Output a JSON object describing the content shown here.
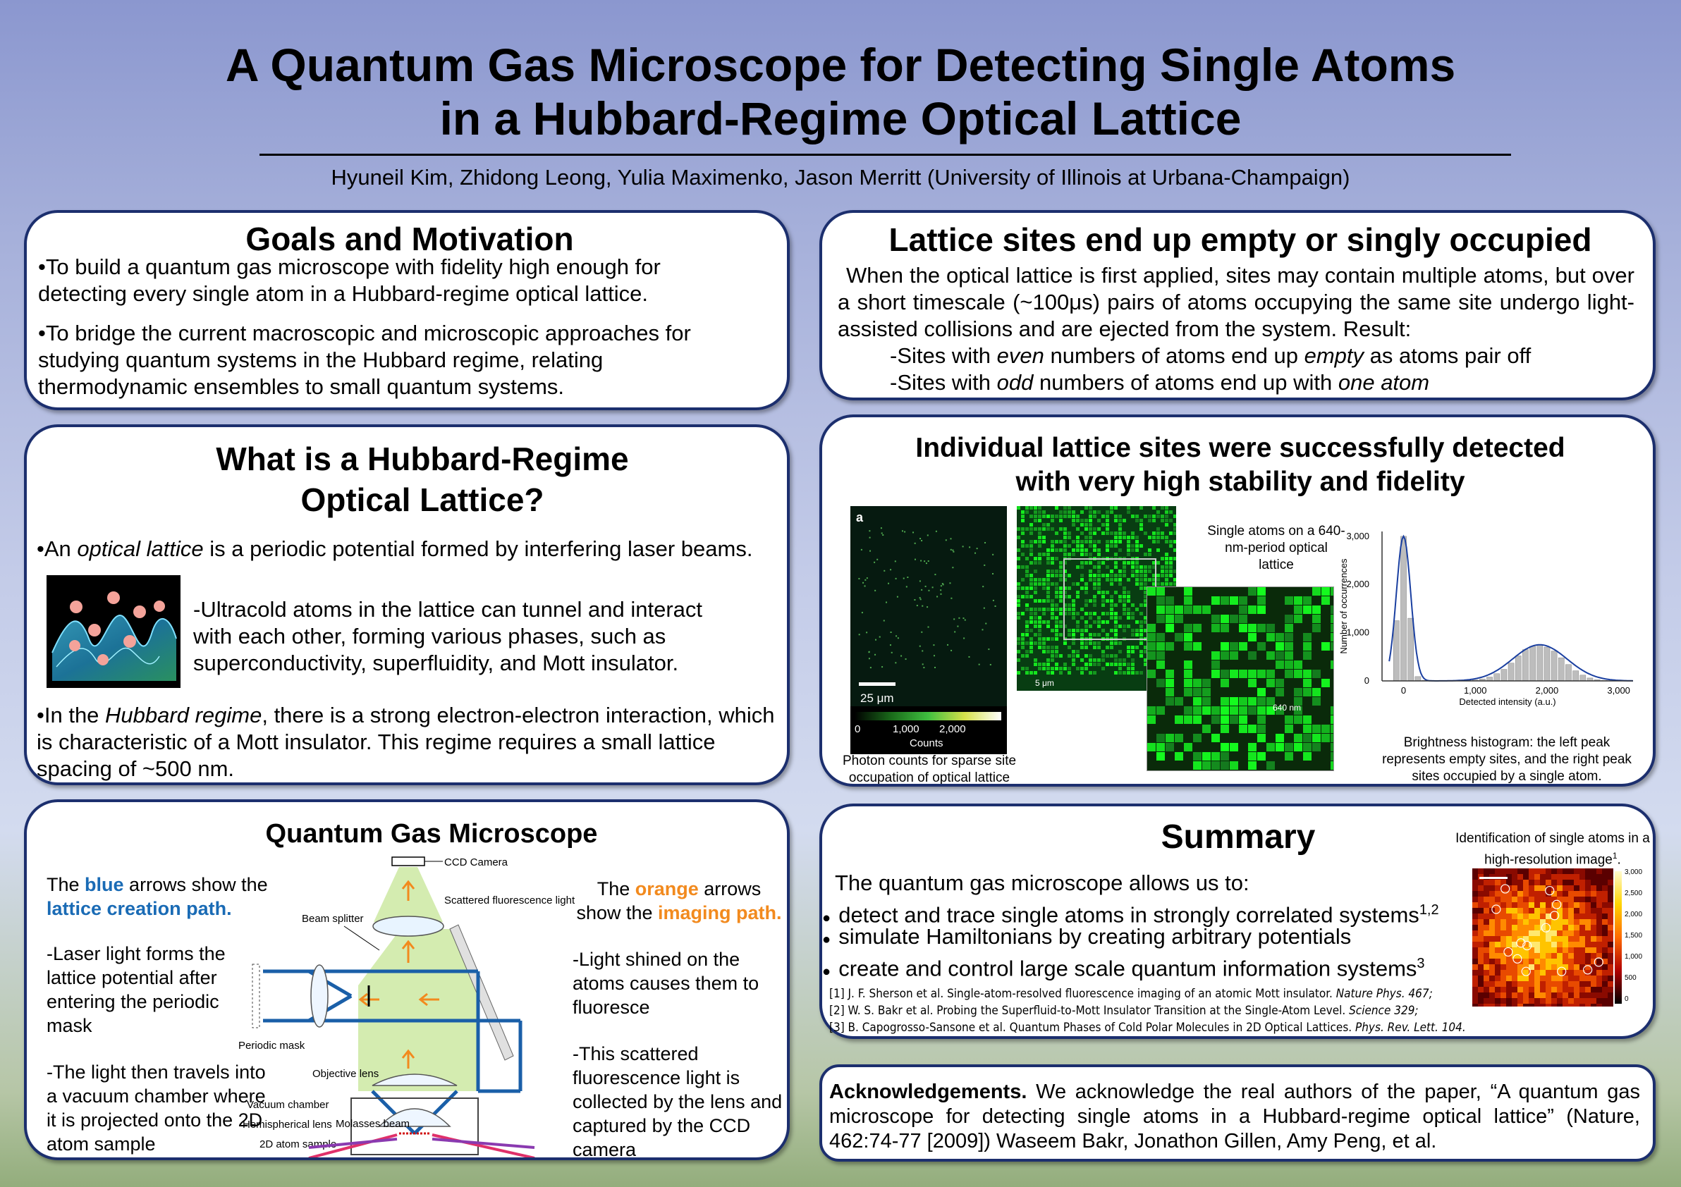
{
  "poster": {
    "title_line1": "A Quantum Gas Microscope for Detecting Single Atoms",
    "title_line2": "in a Hubbard-Regime Optical Lattice",
    "authors": "Hyuneil Kim, Zhidong Leong, Yulia Maximenko, Jason Merritt (University of Illinois at Urbana-Champaign)"
  },
  "goals": {
    "heading": "Goals and Motivation",
    "bullet1": "•To build a quantum gas microscope with fidelity high enough for detecting every single atom in a Hubbard-regime optical lattice.",
    "bullet2": "•To bridge the current macroscopic and microscopic approaches for studying quantum systems in the Hubbard regime, relating thermodynamic ensembles to small quantum systems."
  },
  "hubbard": {
    "heading_line1": "What is a Hubbard-Regime",
    "heading_line2": "Optical Lattice?",
    "p1_prefix": "An ",
    "p1_em": "optical lattice",
    "p1_suffix": " is a periodic potential formed by interfering laser beams.",
    "p2": "-Ultracold atoms in the lattice can tunnel and interact with each other, forming various phases, such as superconductivity, superfluidity, and Mott insulator.",
    "p3_prefix": "In the ",
    "p3_em": "Hubbard regime",
    "p3_suffix": ", there is a strong electron-electron interaction, which is characteristic of a Mott insulator.  This regime requires a small lattice spacing of ~500 nm."
  },
  "microscope": {
    "heading": "Quantum Gas Microscope",
    "blue_pre": "The ",
    "blue_word": "blue",
    "blue_post": " arrows show the",
    "blue_path": "lattice creation path.",
    "left1": "-Laser light forms the lattice potential after entering the periodic mask",
    "left2": "-The light then travels into a vacuum chamber where it is projected onto the 2D atom sample",
    "orange_pre": "The ",
    "orange_word": "orange",
    "orange_post": " arrows",
    "orange_pre2": "show the ",
    "orange_path": "imaging path.",
    "right1": "-Light shined on the atoms causes them to fluoresce",
    "right2": "-This scattered fluorescence light is collected by the lens and captured by the CCD camera",
    "labels": {
      "ccd": "CCD Camera",
      "scattered": "Scattered fluorescence light",
      "beam_splitter": "Beam splitter",
      "periodic_mask": "Periodic mask",
      "objective": "Objective lens",
      "vacuum": "Vacuum chamber",
      "hemi": "Hemispherical lens",
      "sample": "2D atom sample",
      "molasses": "Molasses beam"
    }
  },
  "lattice": {
    "heading": "Lattice sites end up empty or singly occupied",
    "p": "When the optical lattice is first applied, sites may contain multiple atoms, but over a short timescale (~100μs) pairs of atoms occupying the same site undergo  light-assisted collisions and are ejected from the system.  Result:",
    "r1_a": "-Sites with ",
    "r1_b": "even",
    "r1_c": " numbers of atoms end up ",
    "r1_d": "empty",
    "r1_e": " as atoms pair off",
    "r2_a": "-Sites with ",
    "r2_b": "odd",
    "r2_c": " numbers of atoms end up with ",
    "r2_d": "one atom"
  },
  "detection": {
    "heading_line1": "Individual lattice sites were successfully detected",
    "heading_line2": "with very high stability and fidelity",
    "panel_letter": "a",
    "scalebar1": "25 μm",
    "colorbar_ticks": [
      "0",
      "1,000",
      "2,000"
    ],
    "colorbar_label": "Counts",
    "caption1": "Photon counts for sparse site occupation of optical lattice",
    "scalebar2": "5 μm",
    "single_atoms_label": "Single atoms on a 640-nm-period optical lattice",
    "spacing_label": "640 nm",
    "caption2": "Brightness histogram: the left peak represents empty sites, and the right peak sites occupied by a single atom."
  },
  "chart_data": {
    "type": "bar",
    "x": [
      -100,
      0,
      100,
      200,
      300,
      400,
      500,
      600,
      700,
      800,
      900,
      1000,
      1100,
      1200,
      1300,
      1400,
      1500,
      1600,
      1700,
      1800,
      1900,
      2000,
      2100,
      2200,
      2300,
      2400,
      2500,
      2600,
      2700,
      2800,
      2900,
      3000
    ],
    "values": [
      1250,
      3000,
      1300,
      90,
      10,
      5,
      5,
      5,
      5,
      5,
      10,
      20,
      40,
      80,
      150,
      240,
      370,
      520,
      650,
      720,
      750,
      700,
      620,
      480,
      340,
      210,
      120,
      60,
      25,
      10,
      5,
      2
    ],
    "xlabel": "Detected intensity (a.u.)",
    "ylabel": "Number of occurrences",
    "x_ticks": [
      "0",
      "1,000",
      "2,000",
      "3,000"
    ],
    "y_ticks": [
      "0",
      "1,000",
      "2,000",
      "3,000"
    ],
    "xlim": [
      -300,
      3200
    ],
    "ylim": [
      0,
      3100
    ]
  },
  "summary": {
    "heading": "Summary",
    "inset_label": "Identification of single atoms in a high-resolution image",
    "inset_sup": "1",
    "intro": "The quantum gas microscope allows us to:",
    "items": [
      {
        "text": "detect and trace single atoms in strongly correlated systems",
        "sup": "1,2"
      },
      {
        "text": "simulate Hamiltonians by creating arbitrary potentials",
        "sup": ""
      },
      {
        "text": "create and control large scale quantum information systems",
        "sup": "3"
      }
    ],
    "refs": [
      {
        "a": "[1] J. F. Sherson et al. Single-atom-resolved fluorescence imaging of an atomic Mott insulator. ",
        "b": "Nature Phys. 467;"
      },
      {
        "a": "[2] W. S. Bakr et al. Probing the Superfluid-to-Mott Insulator Transition at the Single-Atom Level. ",
        "b": "Science 329;"
      },
      {
        "a": "[3] B. Capogrosso-Sansone et al. Quantum Phases of Cold Polar Molecules in 2D Optical Lattices. ",
        "b": "Phys. Rev. Lett. 104."
      }
    ],
    "colorbar_ticks": [
      "3,000",
      "2,500",
      "2,000",
      "1,500",
      "1,000",
      "500",
      "0"
    ]
  },
  "ack": {
    "bold": "Acknowledgements.",
    "text": " We acknowledge the real authors of the paper,  “A quantum gas microscope for detecting single atoms in a Hubbard-regime optical lattice” (Nature, 462:74-77 [2009]) Waseem Bakr, Jonathon Gillen, Amy Peng, et al."
  }
}
